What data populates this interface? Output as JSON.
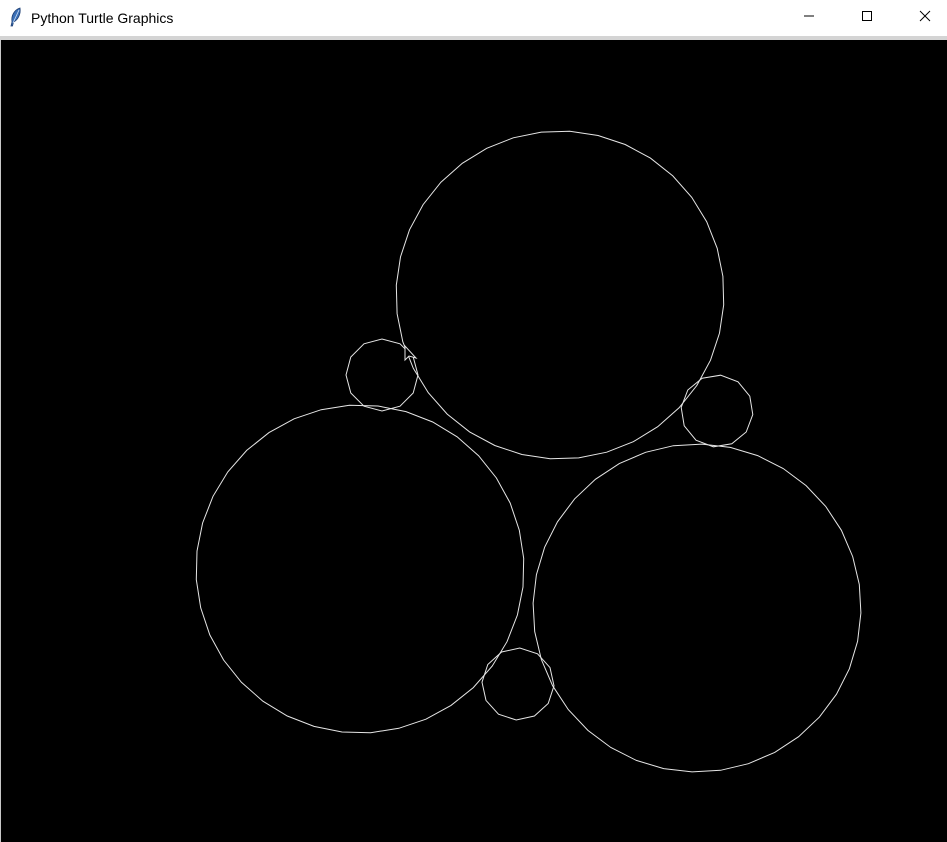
{
  "window": {
    "title": "Python Turtle Graphics",
    "icon": "feather-icon",
    "controls": [
      "minimize-icon",
      "maximize-icon",
      "close-icon"
    ]
  },
  "canvas": {
    "background": "#000000",
    "pen_color": "#e6e6e6",
    "cursor": "turtle-arrow-icon"
  },
  "colors": {
    "titlebar": "#ffffff",
    "canvas": "#000000",
    "stroke": "#e6e6e6"
  }
}
